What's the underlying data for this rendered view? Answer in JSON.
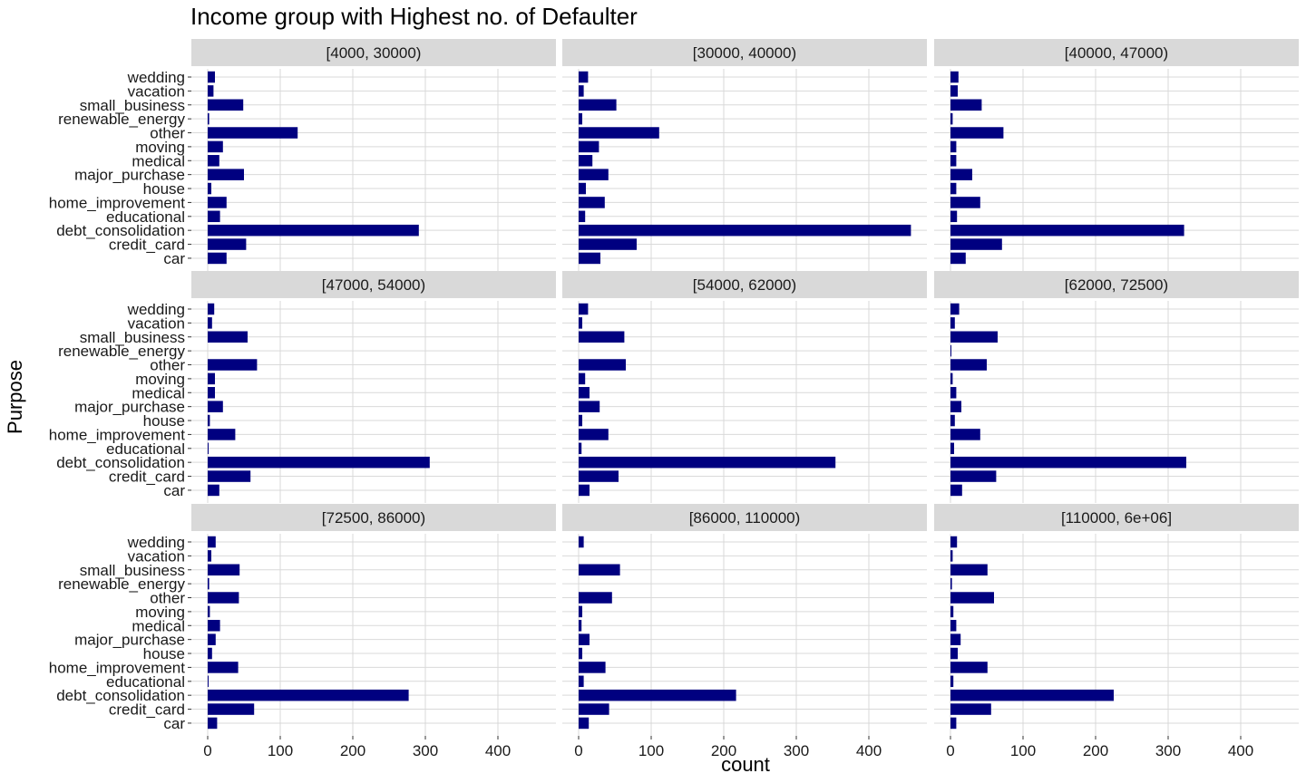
{
  "chart_data": {
    "type": "bar",
    "orientation": "horizontal",
    "title": "Income group with Highest no. of Defaulter",
    "xlabel": "count",
    "ylabel": "Purpose",
    "xlim": [
      0,
      460
    ],
    "x_ticks": [
      0,
      100,
      200,
      300,
      400
    ],
    "bar_color": "#000080",
    "panel_background": "#ffffff",
    "strip_background": "#d9d9d9",
    "gridline_color": "#d9d9d9",
    "grid": true,
    "categories": [
      "wedding",
      "vacation",
      "small_business",
      "renewable_energy",
      "other",
      "moving",
      "medical",
      "major_purchase",
      "house",
      "home_improvement",
      "educational",
      "debt_consolidation",
      "credit_card",
      "car"
    ],
    "panels": [
      {
        "label": "[4000, 30000)",
        "values": [
          10,
          8,
          49,
          2,
          124,
          21,
          16,
          50,
          5,
          26,
          17,
          291,
          53,
          26
        ]
      },
      {
        "label": "[30000, 40000)",
        "values": [
          13,
          7,
          52,
          5,
          111,
          28,
          19,
          41,
          10,
          36,
          9,
          458,
          80,
          30
        ]
      },
      {
        "label": "[40000, 47000)",
        "values": [
          11,
          10,
          43,
          3,
          73,
          8,
          8,
          30,
          8,
          41,
          9,
          322,
          71,
          21
        ]
      },
      {
        "label": "[47000, 54000)",
        "values": [
          9,
          6,
          55,
          0,
          68,
          10,
          10,
          21,
          3,
          38,
          1,
          306,
          59,
          16
        ]
      },
      {
        "label": "[54000, 62000)",
        "values": [
          13,
          5,
          63,
          0,
          65,
          9,
          15,
          29,
          5,
          41,
          4,
          354,
          55,
          15
        ]
      },
      {
        "label": "[62000, 72500)",
        "values": [
          12,
          6,
          65,
          1,
          50,
          3,
          8,
          15,
          6,
          41,
          5,
          325,
          63,
          16
        ]
      },
      {
        "label": "[72500, 86000)",
        "values": [
          11,
          5,
          44,
          2,
          43,
          3,
          17,
          11,
          6,
          42,
          1,
          277,
          64,
          13
        ]
      },
      {
        "label": "[86000, 110000)",
        "values": [
          7,
          0,
          57,
          0,
          46,
          5,
          4,
          15,
          5,
          37,
          7,
          217,
          42,
          14
        ]
      },
      {
        "label": "[110000, 6e+06]",
        "values": [
          9,
          3,
          51,
          2,
          60,
          4,
          8,
          14,
          10,
          51,
          4,
          225,
          56,
          8
        ]
      }
    ]
  }
}
